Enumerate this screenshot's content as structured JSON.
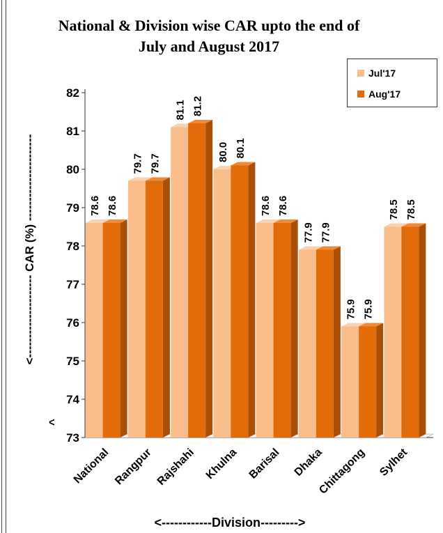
{
  "chart_data": {
    "type": "bar",
    "title": "National & Division wise CAR upto the end of July and August 2017",
    "title_lines": [
      "National & Division wise CAR upto the end of",
      "July and August 2017"
    ],
    "xlabel": "<------------Division--------->",
    "ylabel": "<--------------------- CAR (%) ----------------------",
    "ylabel_arrowhead": "^",
    "categories": [
      "National",
      "Rangpur",
      "Rajshahi",
      "Khulna",
      "Barisal",
      "Dhaka",
      "Chittagong",
      "Sylhet"
    ],
    "series": [
      {
        "name": "Jul'17",
        "values": [
          78.6,
          79.7,
          81.1,
          80.0,
          78.6,
          77.9,
          75.9,
          78.5
        ],
        "labels": [
          "78.6",
          "79.7",
          "81.1",
          "80.0",
          "78.6",
          "77.9",
          "75.9",
          "78.5"
        ],
        "color": "#F9BE8C"
      },
      {
        "name": "Aug'17",
        "values": [
          78.6,
          79.7,
          81.2,
          80.1,
          78.6,
          77.9,
          75.9,
          78.5
        ],
        "labels": [
          "78.6",
          "79.7",
          "81.2",
          "80.1",
          "78.6",
          "77.9",
          "75.9",
          "78.5"
        ],
        "color": "#E36C0A"
      }
    ],
    "ylim": [
      73,
      82
    ],
    "yticks": [
      "73",
      "74",
      "75",
      "76",
      "77",
      "78",
      "79",
      "80",
      "81",
      "82"
    ],
    "grid": false,
    "legend": "top-right"
  },
  "colors": {
    "jul_front": "#F9BE8C",
    "jul_side": "#E9A06A",
    "jul_top": "#FBD3B0",
    "aug_front": "#E36C0A",
    "aug_side": "#A94F07",
    "aug_top": "#EE8A3A"
  }
}
